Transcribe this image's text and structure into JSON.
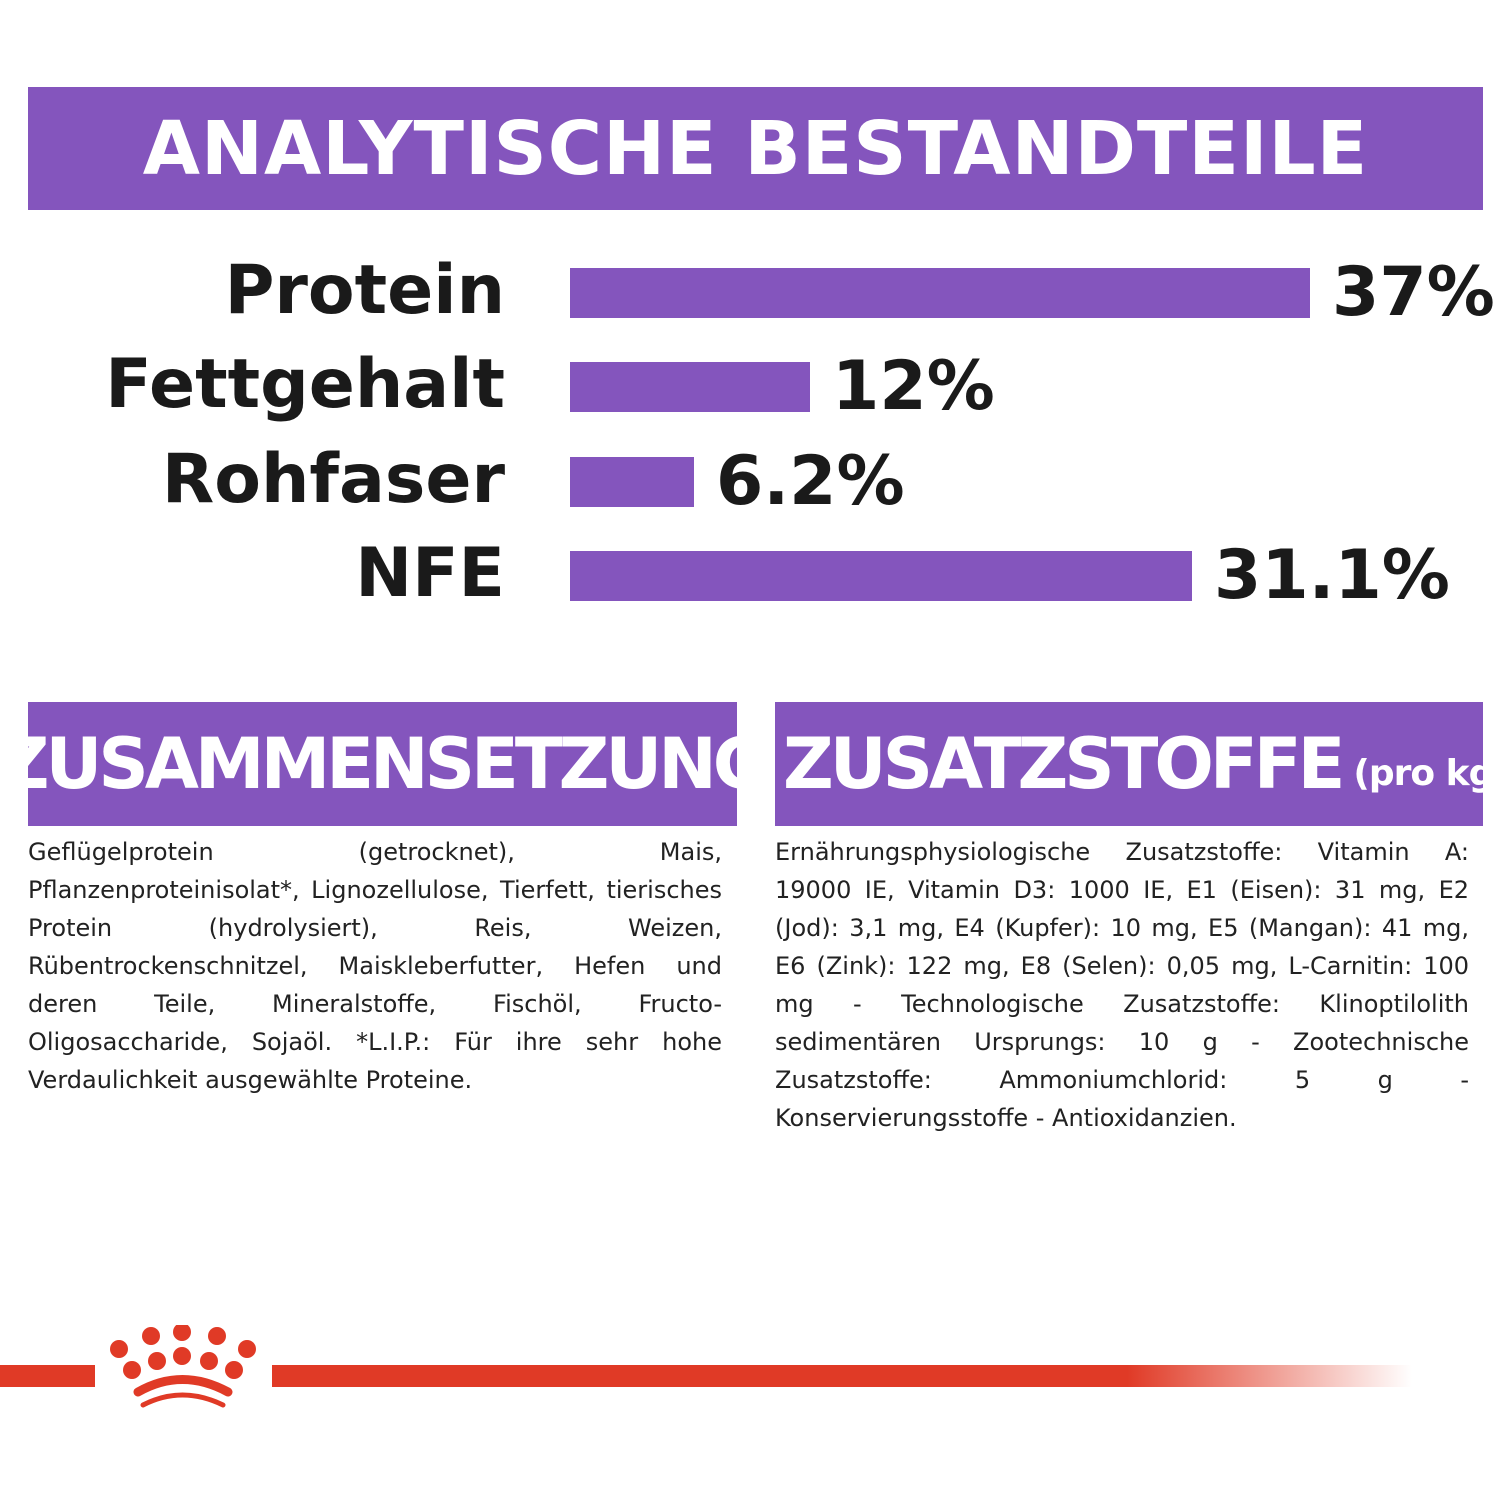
{
  "header": {
    "title": "ANALYTISCHE BESTANDTEILE"
  },
  "chart_data": {
    "type": "bar",
    "orientation": "horizontal",
    "categories": [
      "Protein",
      "Fettgehalt",
      "Rohfaser",
      "NFE"
    ],
    "values": [
      37,
      12,
      6.2,
      31.1
    ],
    "value_labels": [
      "37%",
      "12%",
      "6.2%",
      "31.1%"
    ],
    "unit": "%",
    "grid": false,
    "bar_color": "#8455bd"
  },
  "composition": {
    "title": "ZUSAMMENSETZUNG",
    "text": "Geflügelprotein (getrocknet), Mais, Pflanzenproteinisolat*, Lignozellulose, Tierfett, tierisches Protein (hydrolysiert), Reis, Weizen, Rübentrockenschnitzel, Maiskleberfutter, Hefen und deren Teile, Mineralstoffe, Fischöl, Fructo-Oligosaccharide, Sojaöl. *L.I.P.: Für ihre sehr hohe Verdaulichkeit ausgewählte Proteine."
  },
  "additives": {
    "title": "ZUSATZSTOFFE",
    "subtitle": "(pro kg)",
    "text": "Ernährungsphysiologische Zusatzstoffe: Vitamin A: 19000 IE, Vitamin D3: 1000 IE, E1 (Eisen): 31 mg, E2 (Jod): 3,1 mg, E4 (Kupfer): 10 mg, E5 (Mangan): 41 mg, E6 (Zink): 122 mg, E8 (Selen): 0,05 mg, L-Carnitin: 100 mg - Technologische Zusatzstoffe: Klinoptilolith sedimentären Ursprungs: 10 g - Zootechnische Zusatzstoffe: Ammoniumchlorid: 5 g - Konservierungsstoffe - Antioxidanzien."
  },
  "brand": {
    "logo": "royal-canin-crown",
    "color": "#e03a26"
  }
}
